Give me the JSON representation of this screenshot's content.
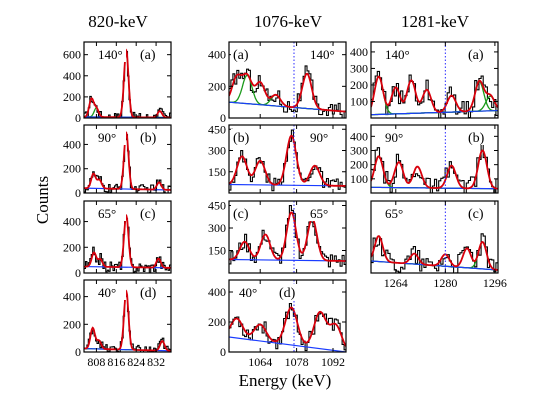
{
  "figure": {
    "y_axis_label": "Counts",
    "x_axis_label": "Energy (keV)",
    "column_titles": [
      "820-keV",
      "1076-keV",
      "1281-keV"
    ]
  },
  "colors": {
    "histogram": "#000000",
    "total_fit": "#d8000c",
    "background": "#1a3cff",
    "component_peak": "#1a9a1a",
    "reference_line": "#2a2aff"
  },
  "chart_data": [
    {
      "type": "line",
      "title": "820-keV",
      "panel_label": "(a)",
      "angle": "140°",
      "xlim": [
        803,
        838
      ],
      "xticks": [
        808,
        816,
        824,
        832
      ],
      "show_xticks": false,
      "ylim": [
        0,
        720
      ],
      "yticks": [
        0,
        200,
        400,
        600
      ],
      "ytick_labels": [
        "0",
        "200",
        "400",
        "600"
      ],
      "background": [
        [
          803,
          10
        ],
        [
          838,
          4
        ]
      ],
      "peaks": [
        {
          "x": 806,
          "h": 170
        },
        {
          "x": 808,
          "h": 80
        },
        {
          "x": 820,
          "h": 630
        },
        {
          "x": 833.5,
          "h": 60
        }
      ],
      "peak_sigma": 0.9,
      "components": [
        {
          "x": 808,
          "h": 90
        },
        {
          "x": 820,
          "h": 620
        }
      ],
      "noise": 45,
      "reference_line": null
    },
    {
      "type": "line",
      "title": "820-keV",
      "panel_label": "(b)",
      "angle": "90°",
      "xlim": [
        803,
        838
      ],
      "xticks": [
        808,
        816,
        824,
        832
      ],
      "show_xticks": false,
      "ylim": [
        0,
        560
      ],
      "yticks": [
        0,
        200,
        400
      ],
      "ytick_labels": [
        "0",
        "200",
        "400"
      ],
      "background": [
        [
          803,
          40
        ],
        [
          838,
          25
        ]
      ],
      "peaks": [
        {
          "x": 806.8,
          "h": 120
        },
        {
          "x": 809.2,
          "h": 70
        },
        {
          "x": 820,
          "h": 460
        },
        {
          "x": 833.2,
          "h": 60
        }
      ],
      "peak_sigma": 0.9,
      "components": [],
      "noise": 40,
      "reference_line": null
    },
    {
      "type": "line",
      "title": "820-keV",
      "panel_label": "(c)",
      "angle": "65°",
      "xlim": [
        803,
        838
      ],
      "xticks": [
        808,
        816,
        824,
        832
      ],
      "show_xticks": false,
      "ylim": [
        0,
        560
      ],
      "yticks": [
        0,
        200,
        400
      ],
      "ytick_labels": [
        "0",
        "200",
        "400"
      ],
      "background": [
        [
          803,
          50
        ],
        [
          838,
          40
        ]
      ],
      "peaks": [
        {
          "x": 807,
          "h": 110
        },
        {
          "x": 809.5,
          "h": 60
        },
        {
          "x": 820,
          "h": 400
        },
        {
          "x": 833,
          "h": 70
        }
      ],
      "peak_sigma": 0.9,
      "components": [],
      "noise": 45,
      "reference_line": null
    },
    {
      "type": "line",
      "title": "820-keV",
      "panel_label": "(d)",
      "angle": "40°",
      "xlim": [
        803,
        838
      ],
      "xticks": [
        808,
        816,
        824,
        832
      ],
      "show_xticks": true,
      "ylim": [
        0,
        520
      ],
      "yticks": [
        0,
        200,
        400
      ],
      "ytick_labels": [
        "0",
        "200",
        "400"
      ],
      "background": [
        [
          803,
          25
        ],
        [
          838,
          8
        ]
      ],
      "peaks": [
        {
          "x": 806.5,
          "h": 150
        },
        {
          "x": 809,
          "h": 60
        },
        {
          "x": 820,
          "h": 420
        },
        {
          "x": 834.5,
          "h": 70
        }
      ],
      "peak_sigma": 0.9,
      "components": [
        {
          "x": 834.5,
          "h": 65
        }
      ],
      "noise": 35,
      "reference_line": null
    },
    {
      "type": "line",
      "title": "1076-keV",
      "panel_label": "(a)",
      "angle": "140°",
      "xlim": [
        1052,
        1097
      ],
      "xticks": [
        1064,
        1078,
        1092
      ],
      "show_xticks": false,
      "ylim": [
        0,
        480
      ],
      "yticks": [
        0,
        200,
        400
      ],
      "ytick_labels": [
        "0",
        "200",
        "400"
      ],
      "background": [
        [
          1052,
          100
        ],
        [
          1097,
          40
        ]
      ],
      "peaks": [
        {
          "x": 1055,
          "h": 160
        },
        {
          "x": 1059,
          "h": 170
        },
        {
          "x": 1064,
          "h": 140
        },
        {
          "x": 1070,
          "h": 70
        },
        {
          "x": 1082,
          "h": 220
        }
      ],
      "peak_sigma": 1.8,
      "components": [
        {
          "x": 1059,
          "h": 180
        },
        {
          "x": 1070,
          "h": 70
        }
      ],
      "noise": 55,
      "reference_line": 1077
    },
    {
      "type": "line",
      "title": "1076-keV",
      "panel_label": "(b)",
      "angle": "90°",
      "xlim": [
        1052,
        1097
      ],
      "xticks": [
        1064,
        1078,
        1092
      ],
      "show_xticks": false,
      "ylim": [
        0,
        480
      ],
      "yticks": [
        150,
        300,
        450
      ],
      "ytick_labels": [
        "150",
        "300",
        "450"
      ],
      "background": [
        [
          1052,
          60
        ],
        [
          1097,
          50
        ]
      ],
      "peaks": [
        {
          "x": 1057,
          "h": 200
        },
        {
          "x": 1064,
          "h": 170
        },
        {
          "x": 1076,
          "h": 350
        },
        {
          "x": 1085,
          "h": 140
        }
      ],
      "peak_sigma": 1.9,
      "components": [],
      "noise": 50,
      "reference_line": 1077
    },
    {
      "type": "line",
      "title": "1076-keV",
      "panel_label": "(c)",
      "angle": "65°",
      "xlim": [
        1052,
        1097
      ],
      "xticks": [
        1064,
        1078,
        1092
      ],
      "show_xticks": false,
      "ylim": [
        0,
        480
      ],
      "yticks": [
        150,
        300,
        450
      ],
      "ytick_labels": [
        "150",
        "300",
        "450"
      ],
      "background": [
        [
          1052,
          90
        ],
        [
          1097,
          80
        ]
      ],
      "peaks": [
        {
          "x": 1058,
          "h": 120
        },
        {
          "x": 1066,
          "h": 170
        },
        {
          "x": 1076,
          "h": 320
        },
        {
          "x": 1084,
          "h": 280
        }
      ],
      "peak_sigma": 1.8,
      "components": [],
      "noise": 55,
      "reference_line": 1077
    },
    {
      "type": "line",
      "title": "1076-keV",
      "panel_label": "(d)",
      "angle": "40°",
      "xlim": [
        1052,
        1097
      ],
      "xticks": [
        1064,
        1078,
        1092
      ],
      "show_xticks": true,
      "ylim": [
        0,
        480
      ],
      "yticks": [
        0,
        200,
        400
      ],
      "ytick_labels": [
        "0",
        "200",
        "400"
      ],
      "background": [
        [
          1052,
          100
        ],
        [
          1097,
          0
        ]
      ],
      "peaks": [
        {
          "x": 1055,
          "h": 130
        },
        {
          "x": 1064,
          "h": 110
        },
        {
          "x": 1076,
          "h": 250
        },
        {
          "x": 1087,
          "h": 240
        },
        {
          "x": 1093,
          "h": 170
        }
      ],
      "peak_sigma": 2.3,
      "components": [],
      "noise": 55,
      "reference_line": 1077
    },
    {
      "type": "line",
      "title": "1281-keV",
      "panel_label": "(a)",
      "angle": "140°",
      "xlim": [
        1256,
        1297
      ],
      "xticks": [
        1264,
        1280,
        1296
      ],
      "show_xticks": false,
      "ylim": [
        0,
        460
      ],
      "yticks": [
        100,
        200,
        300,
        400
      ],
      "ytick_labels": [
        "100",
        "200",
        "300",
        "400"
      ],
      "background": [
        [
          1256,
          20
        ],
        [
          1297,
          45
        ]
      ],
      "peaks": [
        {
          "x": 1258.5,
          "h": 230
        },
        {
          "x": 1264,
          "h": 160
        },
        {
          "x": 1269,
          "h": 200
        },
        {
          "x": 1274,
          "h": 140
        },
        {
          "x": 1282,
          "h": 100
        },
        {
          "x": 1291,
          "h": 180
        },
        {
          "x": 1294.5,
          "h": 90
        }
      ],
      "peak_sigma": 1.4,
      "components": [
        {
          "x": 1258.5,
          "h": 230
        },
        {
          "x": 1291,
          "h": 180
        },
        {
          "x": 1294.5,
          "h": 90
        }
      ],
      "noise": 65,
      "reference_line": 1280
    },
    {
      "type": "line",
      "title": "1281-keV",
      "panel_label": "(b)",
      "angle": "90°",
      "xlim": [
        1256,
        1297
      ],
      "xticks": [
        1264,
        1280,
        1296
      ],
      "show_xticks": false,
      "ylim": [
        0,
        480
      ],
      "yticks": [
        100,
        200,
        300,
        400
      ],
      "ytick_labels": [
        "100",
        "200",
        "300",
        "400"
      ],
      "background": [
        [
          1256,
          40
        ],
        [
          1297,
          30
        ]
      ],
      "peaks": [
        {
          "x": 1258.5,
          "h": 220
        },
        {
          "x": 1265,
          "h": 180
        },
        {
          "x": 1271,
          "h": 150
        },
        {
          "x": 1282,
          "h": 160
        },
        {
          "x": 1292,
          "h": 270
        }
      ],
      "peak_sigma": 1.4,
      "components": [
        {
          "x": 1258.5,
          "h": 220
        },
        {
          "x": 1292,
          "h": 270
        }
      ],
      "noise": 75,
      "reference_line": 1280
    },
    {
      "type": "line",
      "title": "1281-keV",
      "panel_label": "(c)",
      "angle": "65°",
      "xlim": [
        1256,
        1297
      ],
      "xticks": [
        1264,
        1280,
        1296
      ],
      "show_xticks": true,
      "ylim": [
        0,
        480
      ],
      "yticks": [],
      "ytick_labels": [],
      "background": [
        [
          1256,
          80
        ],
        [
          1297,
          20
        ]
      ],
      "peaks": [
        {
          "x": 1258.5,
          "h": 170
        },
        {
          "x": 1270,
          "h": 70
        },
        {
          "x": 1280,
          "h": 80
        },
        {
          "x": 1287,
          "h": 130
        },
        {
          "x": 1292,
          "h": 180
        }
      ],
      "peak_sigma": 1.3,
      "components": [
        {
          "x": 1258.5,
          "h": 170
        },
        {
          "x": 1292,
          "h": 180
        }
      ],
      "noise": 70,
      "reference_line": 1280
    }
  ]
}
